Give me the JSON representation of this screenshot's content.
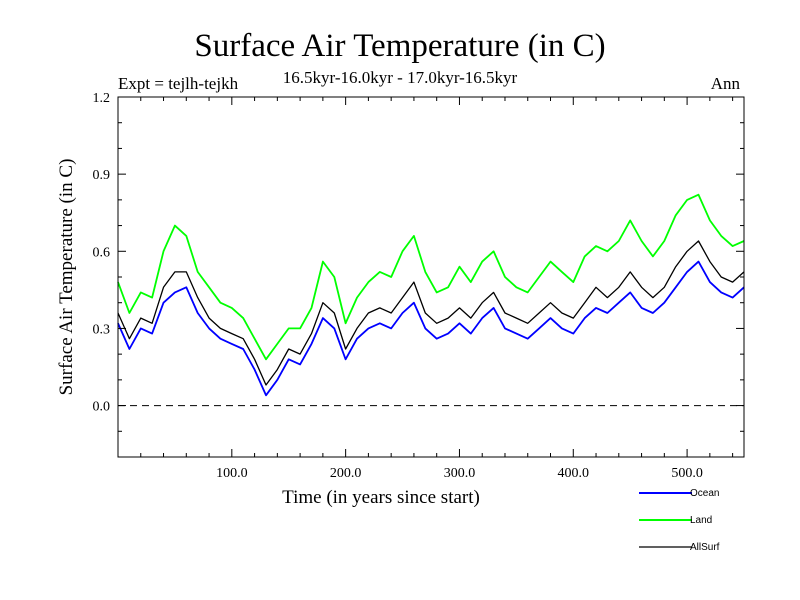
{
  "header": {
    "title": "Surface Air Temperature (in C)",
    "subtitle": "16.5kyr-16.0kyr - 17.0kyr-16.5kyr",
    "expt": "Expt = tejlh-tejkh",
    "period": "Ann"
  },
  "chart_data": {
    "type": "line",
    "title": "Surface Air Temperature (in C)",
    "xlabel": "Time (in years since start)",
    "ylabel": "Surface Air Temperature (in C)",
    "xlim": [
      0,
      550
    ],
    "ylim": [
      -0.2,
      1.2
    ],
    "xticks": [
      100,
      200,
      300,
      400,
      500
    ],
    "xtick_labels": [
      "100.0",
      "200.0",
      "300.0",
      "400.0",
      "500.0"
    ],
    "yticks": [
      0.0,
      0.3,
      0.6,
      0.9,
      1.2
    ],
    "ytick_labels": [
      "0.0",
      "0.3",
      "0.6",
      "0.9",
      "1.2"
    ],
    "reference_line": 0.0,
    "x": [
      0,
      10,
      20,
      30,
      40,
      50,
      60,
      70,
      80,
      90,
      100,
      110,
      120,
      130,
      140,
      150,
      160,
      170,
      180,
      190,
      200,
      210,
      220,
      230,
      240,
      250,
      260,
      270,
      280,
      290,
      300,
      310,
      320,
      330,
      340,
      350,
      360,
      370,
      380,
      390,
      400,
      410,
      420,
      430,
      440,
      450,
      460,
      470,
      480,
      490,
      500,
      510,
      520,
      530,
      540,
      550
    ],
    "series": [
      {
        "name": "Ocean",
        "color": "#0000ff",
        "values": [
          0.32,
          0.22,
          0.3,
          0.28,
          0.4,
          0.44,
          0.46,
          0.36,
          0.3,
          0.26,
          0.24,
          0.22,
          0.14,
          0.04,
          0.1,
          0.18,
          0.16,
          0.24,
          0.34,
          0.3,
          0.18,
          0.26,
          0.3,
          0.32,
          0.3,
          0.36,
          0.4,
          0.3,
          0.26,
          0.28,
          0.32,
          0.28,
          0.34,
          0.38,
          0.3,
          0.28,
          0.26,
          0.3,
          0.34,
          0.3,
          0.28,
          0.34,
          0.38,
          0.36,
          0.4,
          0.44,
          0.38,
          0.36,
          0.4,
          0.46,
          0.52,
          0.56,
          0.48,
          0.44,
          0.42,
          0.46
        ]
      },
      {
        "name": "Land",
        "color": "#00ff00",
        "values": [
          0.48,
          0.36,
          0.44,
          0.42,
          0.6,
          0.7,
          0.66,
          0.52,
          0.46,
          0.4,
          0.38,
          0.34,
          0.26,
          0.18,
          0.24,
          0.3,
          0.3,
          0.38,
          0.56,
          0.5,
          0.32,
          0.42,
          0.48,
          0.52,
          0.5,
          0.6,
          0.66,
          0.52,
          0.44,
          0.46,
          0.54,
          0.48,
          0.56,
          0.6,
          0.5,
          0.46,
          0.44,
          0.5,
          0.56,
          0.52,
          0.48,
          0.58,
          0.62,
          0.6,
          0.64,
          0.72,
          0.64,
          0.58,
          0.64,
          0.74,
          0.8,
          0.82,
          0.72,
          0.66,
          0.62,
          0.64
        ]
      },
      {
        "name": "AllSurf",
        "color": "#000000",
        "values": [
          0.36,
          0.26,
          0.34,
          0.32,
          0.46,
          0.52,
          0.52,
          0.42,
          0.34,
          0.3,
          0.28,
          0.26,
          0.18,
          0.08,
          0.14,
          0.22,
          0.2,
          0.28,
          0.4,
          0.36,
          0.22,
          0.3,
          0.36,
          0.38,
          0.36,
          0.42,
          0.48,
          0.36,
          0.32,
          0.34,
          0.38,
          0.34,
          0.4,
          0.44,
          0.36,
          0.34,
          0.32,
          0.36,
          0.4,
          0.36,
          0.34,
          0.4,
          0.46,
          0.42,
          0.46,
          0.52,
          0.46,
          0.42,
          0.46,
          0.54,
          0.6,
          0.64,
          0.56,
          0.5,
          0.48,
          0.52
        ]
      }
    ],
    "legend_position": "bottom-right"
  }
}
